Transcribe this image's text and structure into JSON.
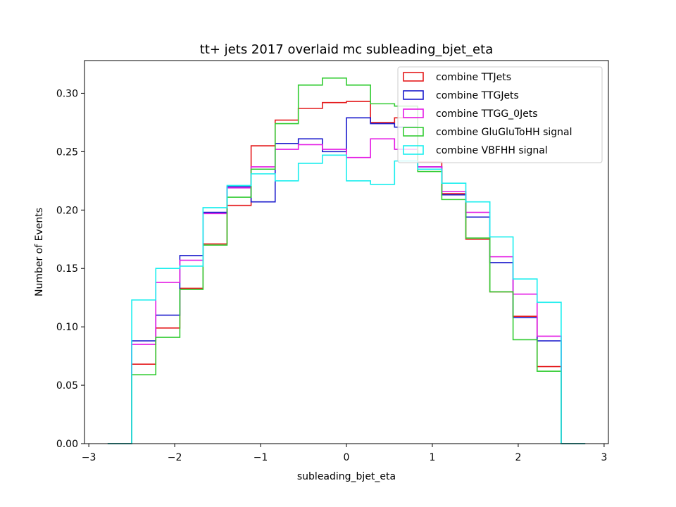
{
  "chart_data": {
    "type": "line",
    "style": "step-histogram",
    "title": "tt+ jets 2017 overlaid mc subleading_bjet_eta",
    "xlabel": "subleading_bjet_eta",
    "ylabel": "Number of Events",
    "xlim": [
      -3.05,
      3.05
    ],
    "ylim": [
      0,
      0.328
    ],
    "xticks": [
      -3,
      -2,
      -1,
      0,
      1,
      2,
      3
    ],
    "xtick_labels": [
      "−3",
      "−2",
      "−1",
      "0",
      "1",
      "2",
      "3"
    ],
    "yticks": [
      0,
      0.05,
      0.1,
      0.15,
      0.2,
      0.25,
      0.3
    ],
    "ytick_labels": [
      "0.00",
      "0.05",
      "0.10",
      "0.15",
      "0.20",
      "0.25",
      "0.30"
    ],
    "bin_edges": [
      -2.78,
      -2.5,
      -2.22,
      -1.94,
      -1.67,
      -1.39,
      -1.11,
      -0.83,
      -0.56,
      -0.28,
      0.0,
      0.28,
      0.56,
      0.83,
      1.11,
      1.39,
      1.67,
      1.94,
      2.22,
      2.5,
      2.78
    ],
    "legend_position": "top-right",
    "series": [
      {
        "name": "combine TTJets",
        "color": "#e41a1c",
        "values": [
          0.0,
          0.068,
          0.099,
          0.133,
          0.171,
          0.204,
          0.255,
          0.277,
          0.287,
          0.292,
          0.293,
          0.275,
          0.279,
          0.241,
          0.214,
          0.175,
          0.13,
          0.109,
          0.066,
          0.0
        ]
      },
      {
        "name": "combine TTGJets",
        "color": "#1a1acc",
        "values": [
          0.0,
          0.088,
          0.11,
          0.161,
          0.198,
          0.22,
          0.207,
          0.257,
          0.261,
          0.25,
          0.279,
          0.274,
          0.271,
          0.237,
          0.213,
          0.194,
          0.155,
          0.108,
          0.088,
          0.0
        ]
      },
      {
        "name": "combine TTGG_0Jets",
        "color": "#e41ae4",
        "values": [
          0.0,
          0.085,
          0.138,
          0.157,
          0.197,
          0.219,
          0.237,
          0.252,
          0.256,
          0.252,
          0.245,
          0.261,
          0.252,
          0.237,
          0.216,
          0.198,
          0.16,
          0.128,
          0.092,
          0.0
        ]
      },
      {
        "name": "combine GluGluToHH signal",
        "color": "#33cc33",
        "values": [
          0.0,
          0.059,
          0.091,
          0.132,
          0.17,
          0.211,
          0.235,
          0.274,
          0.307,
          0.313,
          0.307,
          0.291,
          0.289,
          0.233,
          0.209,
          0.176,
          0.13,
          0.089,
          0.062,
          0.0
        ]
      },
      {
        "name": "combine VBFHH signal",
        "color": "#1aeeee",
        "values": [
          0.0,
          0.123,
          0.15,
          0.152,
          0.202,
          0.221,
          0.231,
          0.225,
          0.24,
          0.247,
          0.225,
          0.222,
          0.242,
          0.235,
          0.223,
          0.207,
          0.177,
          0.141,
          0.121,
          0.0
        ]
      }
    ]
  }
}
